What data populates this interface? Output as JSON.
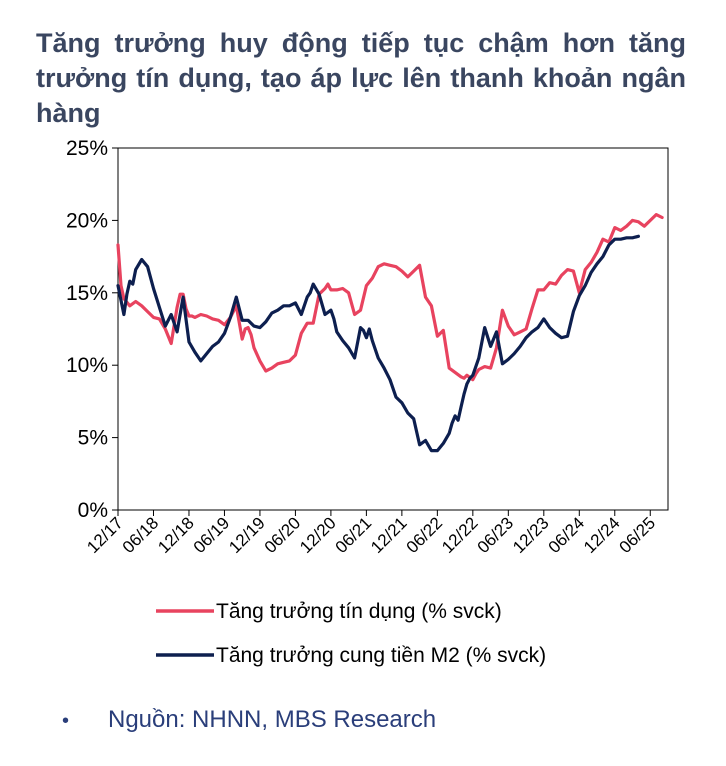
{
  "title": "Tăng trưởng huy động tiếp tục chậm hơn tăng trưởng tín dụng, tạo áp lực lên thanh khoản ngân hàng",
  "source": {
    "bullet": "•",
    "text": "Nguồn: NHNN, MBS Research"
  },
  "chart_data": {
    "type": "line",
    "title": "Tăng trưởng huy động tiếp tục chậm hơn tăng trưởng tín dụng, tạo áp lực lên thanh khoản ngân hàng",
    "xlabel": "",
    "ylabel": "",
    "ylim": [
      0,
      25
    ],
    "yticks": [
      0,
      5,
      10,
      15,
      20,
      25
    ],
    "ytick_labels": [
      "0%",
      "5%",
      "10%",
      "15%",
      "20%",
      "25%"
    ],
    "xlim": [
      0,
      93
    ],
    "x_unit": "months since 12/17",
    "xticks": [
      0,
      6,
      12,
      18,
      24,
      30,
      36,
      42,
      48,
      54,
      60,
      66,
      72,
      78,
      84,
      90
    ],
    "xtick_labels": [
      "12/17",
      "06/18",
      "12/18",
      "06/19",
      "12/19",
      "06/20",
      "12/20",
      "06/21",
      "12/21",
      "06/22",
      "12/22",
      "06/23",
      "12/23",
      "06/24",
      "12/24",
      "06/25"
    ],
    "grid": false,
    "legend_position": "bottom",
    "series": [
      {
        "name": "Tăng trưởng tín dụng (% svck)",
        "color": "#e8435f",
        "x": [
          0,
          0.5,
          1,
          2,
          3,
          4,
          5,
          6,
          7,
          8,
          9,
          10,
          10.5,
          11,
          11.5,
          12,
          12.5,
          13,
          14,
          15,
          16,
          17,
          18,
          19,
          20,
          21,
          21.5,
          22,
          22.5,
          23,
          24,
          25,
          26,
          27,
          28,
          29,
          30,
          31,
          32,
          33,
          34,
          35,
          35.5,
          36,
          37,
          38,
          39,
          40,
          41,
          42,
          43,
          44,
          45,
          46,
          47,
          48,
          49,
          50,
          51,
          52,
          53,
          54,
          55,
          56,
          57,
          58,
          58.5,
          59,
          60,
          60.5,
          61,
          62,
          63,
          64,
          65,
          66,
          67,
          68,
          69,
          70,
          71,
          72,
          73,
          74,
          75,
          76,
          77,
          78,
          79,
          80,
          81,
          82,
          83,
          84,
          85,
          86,
          87,
          88,
          89,
          90,
          91,
          92
        ],
        "values": [
          18.3,
          15.5,
          14.6,
          14.1,
          14.4,
          14.1,
          13.7,
          13.3,
          13.2,
          12.5,
          11.5,
          14.0,
          14.9,
          14.9,
          13.9,
          13.4,
          13.4,
          13.3,
          13.5,
          13.4,
          13.2,
          13.1,
          12.8,
          13.3,
          14.1,
          11.8,
          12.5,
          12.6,
          12.1,
          11.2,
          10.3,
          9.6,
          9.8,
          10.1,
          10.2,
          10.3,
          10.7,
          12.2,
          12.9,
          12.9,
          14.9,
          15.3,
          15.6,
          15.2,
          15.2,
          15.3,
          15.0,
          13.5,
          13.8,
          15.5,
          16.0,
          16.8,
          17.0,
          16.9,
          16.8,
          16.5,
          16.1,
          16.5,
          16.9,
          14.7,
          14.1,
          12.0,
          12.4,
          9.8,
          9.5,
          9.2,
          9.1,
          9.3,
          9.0,
          9.4,
          9.7,
          9.9,
          9.8,
          11.2,
          13.8,
          12.7,
          12.1,
          12.3,
          12.5,
          13.9,
          15.2,
          15.2,
          15.7,
          15.6,
          16.2,
          16.6,
          16.5,
          15.0,
          16.6,
          17.1,
          17.8,
          18.7,
          18.5,
          19.5,
          19.3,
          19.6,
          20.0,
          19.9,
          19.6,
          20.0,
          20.4,
          20.2
        ],
        "note": "x positions are approximate month offsets read from the chart"
      },
      {
        "name": "Tăng trưởng cung tiền M2 (% svck)",
        "color": "#0d1f4f",
        "x": [
          0,
          1,
          1.5,
          2,
          2.5,
          3,
          4,
          5,
          6,
          7,
          8,
          9,
          10,
          11,
          12,
          13,
          14,
          15,
          16,
          17,
          18,
          19,
          20,
          21,
          22,
          23,
          24,
          25,
          26,
          27,
          28,
          29,
          30,
          31,
          32,
          32.5,
          33,
          34,
          35,
          36,
          36.5,
          37,
          38,
          39,
          40,
          41,
          41.5,
          42,
          42.5,
          43,
          44,
          45,
          46,
          47,
          48,
          49,
          50,
          51,
          52,
          53,
          54,
          55,
          56,
          56.5,
          57,
          57.5,
          58,
          58.5,
          59,
          59.5,
          60,
          61,
          62,
          63,
          64,
          65,
          66,
          67,
          68,
          69,
          70,
          71,
          72,
          73,
          74,
          75,
          76,
          77,
          78,
          79,
          80,
          81,
          82,
          83,
          84,
          85,
          86,
          87,
          88
        ],
        "values": [
          15.5,
          13.5,
          14.9,
          15.8,
          15.6,
          16.6,
          17.3,
          16.8,
          15.3,
          14.0,
          12.7,
          13.5,
          12.3,
          14.7,
          11.6,
          10.9,
          10.3,
          10.8,
          11.3,
          11.6,
          12.2,
          13.3,
          14.7,
          13.1,
          13.1,
          12.7,
          12.6,
          13.0,
          13.6,
          13.8,
          14.1,
          14.1,
          14.3,
          13.5,
          14.7,
          15.0,
          15.6,
          14.9,
          13.5,
          13.8,
          13.2,
          12.3,
          11.7,
          11.2,
          10.5,
          12.6,
          12.4,
          11.9,
          12.5,
          11.7,
          10.5,
          9.8,
          9.0,
          7.8,
          7.4,
          6.7,
          6.3,
          4.5,
          4.8,
          4.1,
          4.1,
          4.6,
          5.3,
          6.0,
          6.5,
          6.2,
          7.1,
          8.0,
          8.7,
          9.1,
          9.3,
          10.5,
          12.6,
          11.3,
          12.3,
          10.1,
          10.4,
          10.8,
          11.3,
          11.9,
          12.3,
          12.6,
          13.2,
          12.6,
          12.2,
          11.9,
          12.0,
          13.7,
          14.8,
          15.5,
          16.4,
          17.0,
          17.5,
          18.3,
          18.7,
          18.7,
          18.8,
          18.8,
          18.9
        ],
        "note": "x positions are approximate month offsets read from the chart"
      }
    ]
  }
}
